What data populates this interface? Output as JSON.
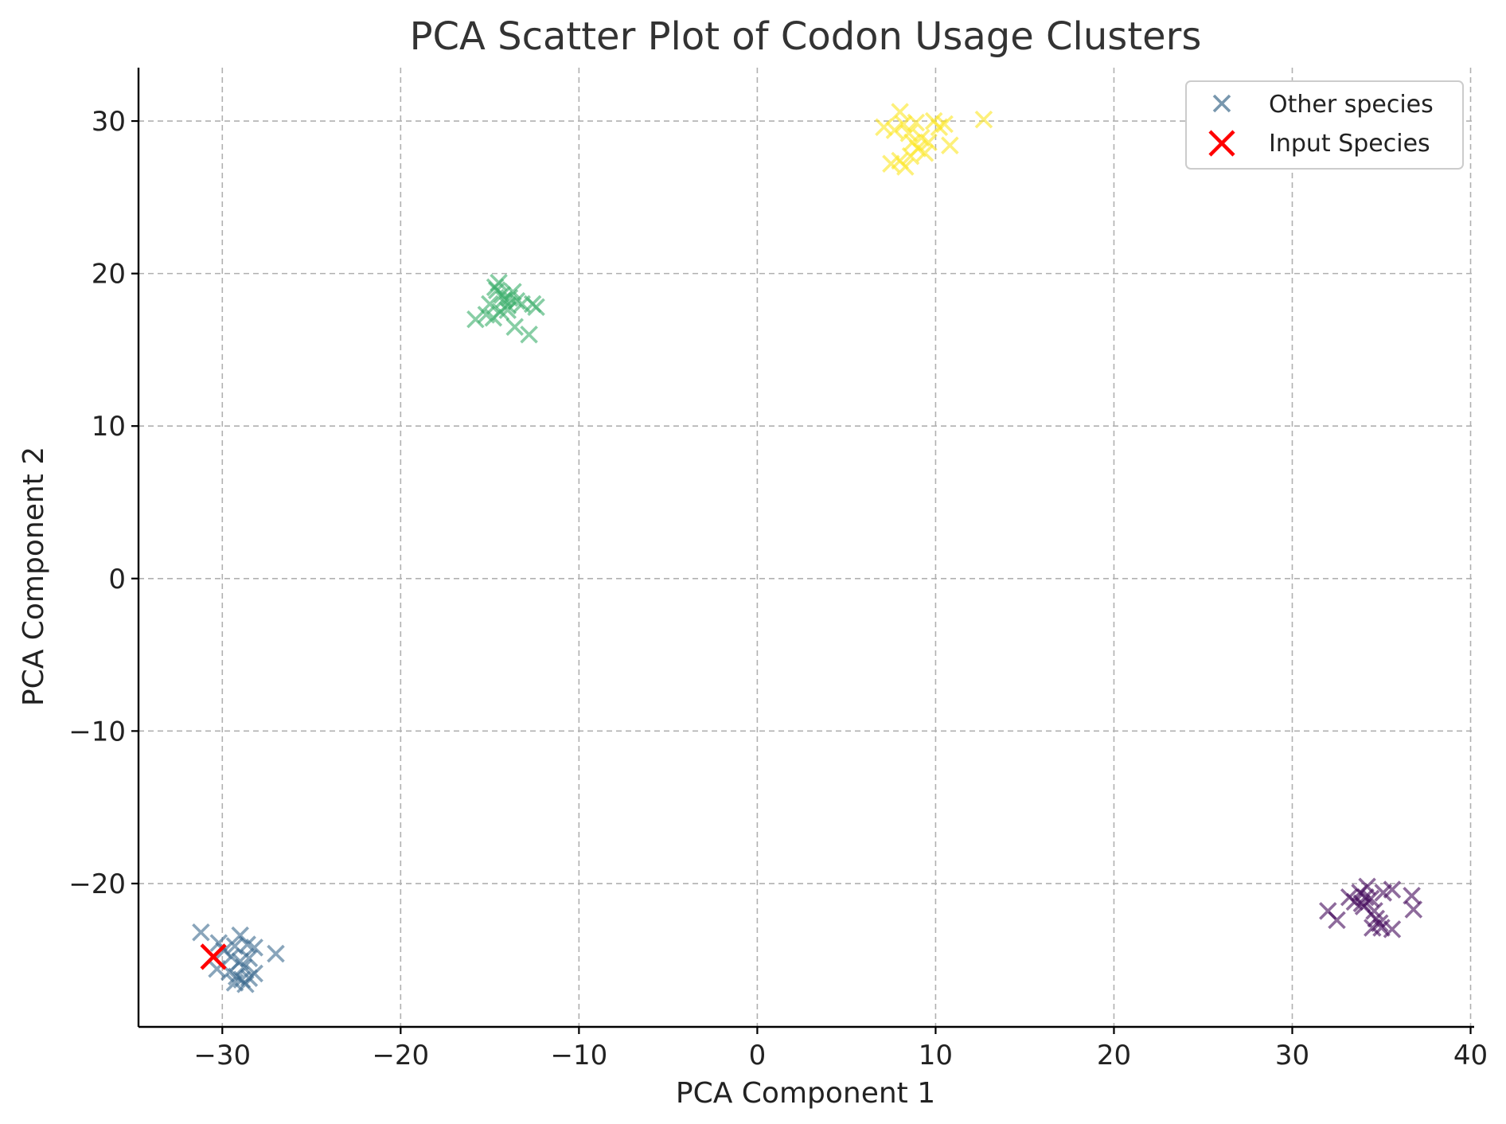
{
  "chart_data": {
    "type": "scatter",
    "title": "PCA Scatter Plot of Codon Usage Clusters",
    "xlabel": "PCA Component 1",
    "ylabel": "PCA Component 2",
    "xlim": [
      -34.7,
      40.2
    ],
    "ylim": [
      -29.4,
      33.5
    ],
    "xticks": [
      -30,
      -20,
      -10,
      0,
      10,
      20,
      30,
      40
    ],
    "yticks": [
      -20,
      -10,
      0,
      10,
      20,
      30
    ],
    "grid": true,
    "legend": {
      "location": "top-right",
      "entries": [
        {
          "label": "Other species",
          "marker": "x",
          "color": "#6a8ca6"
        },
        {
          "label": "Input Species",
          "marker": "x",
          "color": "#ff0000"
        }
      ]
    },
    "series": [
      {
        "name": "Other species",
        "cluster": "blue",
        "color": "#3b6a8f",
        "points": [
          [
            -31.2,
            -23.2
          ],
          [
            -30.2,
            -23.9
          ],
          [
            -29.3,
            -24.1
          ],
          [
            -29.0,
            -23.4
          ],
          [
            -28.6,
            -24.0
          ],
          [
            -28.2,
            -24.2
          ],
          [
            -27.0,
            -24.6
          ],
          [
            -29.5,
            -24.8
          ],
          [
            -29.0,
            -25.1
          ],
          [
            -28.8,
            -25.5
          ],
          [
            -28.5,
            -24.9
          ],
          [
            -30.3,
            -25.6
          ],
          [
            -29.6,
            -25.8
          ],
          [
            -29.2,
            -26.1
          ],
          [
            -28.9,
            -26.3
          ],
          [
            -28.5,
            -26.2
          ],
          [
            -28.2,
            -25.9
          ],
          [
            -29.3,
            -26.5
          ],
          [
            -28.7,
            -26.6
          ],
          [
            -29.9,
            -24.4
          ]
        ]
      },
      {
        "name": "Other species",
        "cluster": "green",
        "color": "#3aae6a",
        "points": [
          [
            -15.8,
            17.0
          ],
          [
            -15.2,
            17.3
          ],
          [
            -15.0,
            18.0
          ],
          [
            -14.7,
            19.1
          ],
          [
            -14.5,
            19.4
          ],
          [
            -14.3,
            18.6
          ],
          [
            -14.2,
            18.3
          ],
          [
            -14.0,
            17.9
          ],
          [
            -14.4,
            17.5
          ],
          [
            -13.7,
            18.8
          ],
          [
            -13.5,
            18.2
          ],
          [
            -13.2,
            18.0
          ],
          [
            -13.6,
            16.5
          ],
          [
            -12.8,
            16.0
          ],
          [
            -12.6,
            18.0
          ],
          [
            -12.4,
            17.8
          ],
          [
            -14.8,
            17.1
          ],
          [
            -14.0,
            17.6
          ],
          [
            -13.9,
            18.4
          ],
          [
            -14.6,
            18.9
          ]
        ]
      },
      {
        "name": "Other species",
        "cluster": "yellow",
        "color": "#fde725",
        "points": [
          [
            7.1,
            29.6
          ],
          [
            7.7,
            29.4
          ],
          [
            8.0,
            30.6
          ],
          [
            8.2,
            29.8
          ],
          [
            8.5,
            29.2
          ],
          [
            8.7,
            28.6
          ],
          [
            8.9,
            29.9
          ],
          [
            9.0,
            28.2
          ],
          [
            9.2,
            28.9
          ],
          [
            9.4,
            27.9
          ],
          [
            9.6,
            28.6
          ],
          [
            9.9,
            30.0
          ],
          [
            10.2,
            29.6
          ],
          [
            10.5,
            29.8
          ],
          [
            10.8,
            28.4
          ],
          [
            12.7,
            30.1
          ],
          [
            7.5,
            27.2
          ],
          [
            8.0,
            27.4
          ],
          [
            8.3,
            27.0
          ],
          [
            8.6,
            27.7
          ]
        ]
      },
      {
        "name": "Other species",
        "cluster": "purple",
        "color": "#44095c",
        "points": [
          [
            32.0,
            -21.8
          ],
          [
            32.5,
            -22.4
          ],
          [
            33.2,
            -20.9
          ],
          [
            33.5,
            -21.2
          ],
          [
            33.8,
            -20.6
          ],
          [
            34.0,
            -21.5
          ],
          [
            34.2,
            -20.2
          ],
          [
            34.4,
            -21.0
          ],
          [
            34.6,
            -21.8
          ],
          [
            34.5,
            -22.9
          ],
          [
            34.9,
            -22.6
          ],
          [
            35.1,
            -20.6
          ],
          [
            35.6,
            -20.4
          ],
          [
            35.6,
            -23.0
          ],
          [
            36.7,
            -20.8
          ],
          [
            36.8,
            -21.7
          ],
          [
            34.1,
            -20.9
          ],
          [
            33.9,
            -21.3
          ],
          [
            34.7,
            -22.3
          ],
          [
            35.0,
            -22.9
          ]
        ]
      },
      {
        "name": "Input Species",
        "cluster": "input",
        "color": "#ff0000",
        "points": [
          [
            -30.5,
            -24.8
          ]
        ]
      }
    ]
  }
}
